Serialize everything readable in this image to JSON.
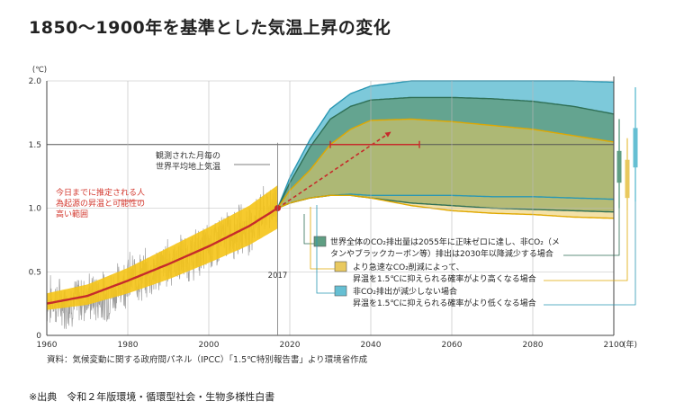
{
  "title": "1850〜1900年を基準とした気温上昇の変化",
  "source": "資料：気候変動に関する政府間パネル（IPCC）「1.5℃特別報告書」より環境省作成",
  "footer": "※出典　令和２年版環境・循環型社会・生物多様性白書",
  "colors": {
    "observed": "#9e9e9e",
    "human_band": "#f5c417",
    "human_line": "#c62b2b",
    "rapid_band": "#e9c95f",
    "net_zero_band": "#5f9e83",
    "slow_band": "#66bfd3",
    "annotation_red": "#d3392f"
  },
  "chart_data": {
    "type": "area",
    "ylabel": "(℃)",
    "xlabel_unit": "(年)",
    "xlim": [
      1960,
      2100
    ],
    "ylim": [
      0,
      2.0
    ],
    "x_ticks": [
      1960,
      1980,
      2000,
      2020,
      2040,
      2060,
      2080,
      2100
    ],
    "x_tick_labels": [
      "1960",
      "1980",
      "2000",
      "2020",
      "2040",
      "2060",
      "2080",
      "2100"
    ],
    "y_ticks": [
      0,
      0.5,
      1.0,
      1.5,
      2.0
    ],
    "y_tick_labels": [
      "0",
      "0.5",
      "1.0",
      "1.5",
      "2.0"
    ],
    "marker_year": 2017,
    "marker_label": "2017",
    "observed_label": "観測された月毎の\n世界平均地上気温",
    "human_label": "今日までに推定される人\n為起源の昇温と可能性の\n高い範囲",
    "observed_anchors": {
      "x": [
        1960,
        1965,
        1970,
        1975,
        1980,
        1985,
        1990,
        1995,
        2000,
        2005,
        2010,
        2015,
        2017
      ],
      "y": [
        0.27,
        0.25,
        0.3,
        0.3,
        0.45,
        0.47,
        0.58,
        0.6,
        0.7,
        0.8,
        0.85,
        1.0,
        1.05
      ]
    },
    "human_induced": {
      "x": [
        1960,
        1970,
        1980,
        1990,
        2000,
        2010,
        2017
      ],
      "central": [
        0.25,
        0.31,
        0.43,
        0.56,
        0.7,
        0.86,
        1.0
      ],
      "low": [
        0.2,
        0.24,
        0.33,
        0.44,
        0.57,
        0.71,
        0.84
      ],
      "high": [
        0.33,
        0.4,
        0.53,
        0.69,
        0.85,
        1.02,
        1.18
      ]
    },
    "projection_arrow": {
      "from": [
        2017,
        1.0
      ],
      "to": [
        2045,
        1.6
      ]
    },
    "projection_bar": {
      "y": 1.5,
      "x_range": [
        2030,
        2052
      ]
    },
    "series": [
      {
        "name": "世界全体のCO₂排出量は2055年に正味ゼロに達し、非CO₂（メタンやブラックカーボン等）排出は2030年以降減少する場合",
        "color": "#5f9e83",
        "x": [
          2017,
          2020,
          2025,
          2030,
          2035,
          2040,
          2050,
          2060,
          2070,
          2080,
          2090,
          2100
        ],
        "low": [
          1.0,
          1.04,
          1.08,
          1.1,
          1.1,
          1.08,
          1.04,
          1.02,
          1.0,
          0.99,
          0.98,
          0.97
        ],
        "high": [
          1.0,
          1.2,
          1.48,
          1.7,
          1.8,
          1.85,
          1.87,
          1.87,
          1.86,
          1.84,
          1.8,
          1.74
        ]
      },
      {
        "name": "より急速なCO₂削減によって、昇温を1.5℃に抑えられる確率がより高くなる場合",
        "color": "#e9c95f",
        "x": [
          2017,
          2020,
          2025,
          2030,
          2035,
          2040,
          2050,
          2060,
          2070,
          2080,
          2090,
          2100
        ],
        "low": [
          1.0,
          1.04,
          1.08,
          1.1,
          1.1,
          1.08,
          1.02,
          0.98,
          0.96,
          0.95,
          0.93,
          0.92
        ],
        "high": [
          1.0,
          1.14,
          1.3,
          1.5,
          1.62,
          1.69,
          1.7,
          1.68,
          1.65,
          1.62,
          1.57,
          1.52
        ]
      },
      {
        "name": "非CO₂排出が減少しない場合、昇温を1.5℃に抑えられる確率がより低くなる場合",
        "color": "#66bfd3",
        "x": [
          2017,
          2020,
          2025,
          2030,
          2035,
          2040,
          2050,
          2060,
          2070,
          2080,
          2090,
          2100
        ],
        "low": [
          1.0,
          1.04,
          1.08,
          1.1,
          1.11,
          1.1,
          1.1,
          1.1,
          1.09,
          1.09,
          1.08,
          1.07
        ],
        "high": [
          1.0,
          1.24,
          1.54,
          1.78,
          1.9,
          1.96,
          2.0,
          2.0,
          2.0,
          2.0,
          2.0,
          1.99
        ]
      }
    ],
    "legend": [
      {
        "key": "green",
        "color": "#5f9e83",
        "lines": [
          "世界全体のCO₂排出量は2055年に正味ゼロに達し、非CO₂（メ",
          "タンやブラックカーボン等）排出は2030年以降減少する場合"
        ]
      },
      {
        "key": "yellow",
        "color": "#e9c95f",
        "lines": [
          "より急速なCO₂削減によって、",
          "昇温を1.5℃に抑えられる確率がより高くなる場合"
        ]
      },
      {
        "key": "blue",
        "color": "#66bfd3",
        "lines": [
          "非CO₂排出が減少しない場合",
          "昇温を1.5℃に抑えられる確率がより低くなる場合"
        ]
      }
    ],
    "side_ranges": [
      {
        "color": "#5f9e83",
        "low": 1.0,
        "high": 1.7,
        "center": 1.4,
        "inner": [
          1.2,
          1.45
        ]
      },
      {
        "color": "#e9c95f",
        "low": 0.98,
        "high": 1.55,
        "center": 1.25,
        "inner": [
          1.08,
          1.38
        ]
      },
      {
        "color": "#66bfd3",
        "low": 1.05,
        "high": 1.95,
        "center": 1.5,
        "inner": [
          1.32,
          1.63
        ]
      }
    ]
  }
}
